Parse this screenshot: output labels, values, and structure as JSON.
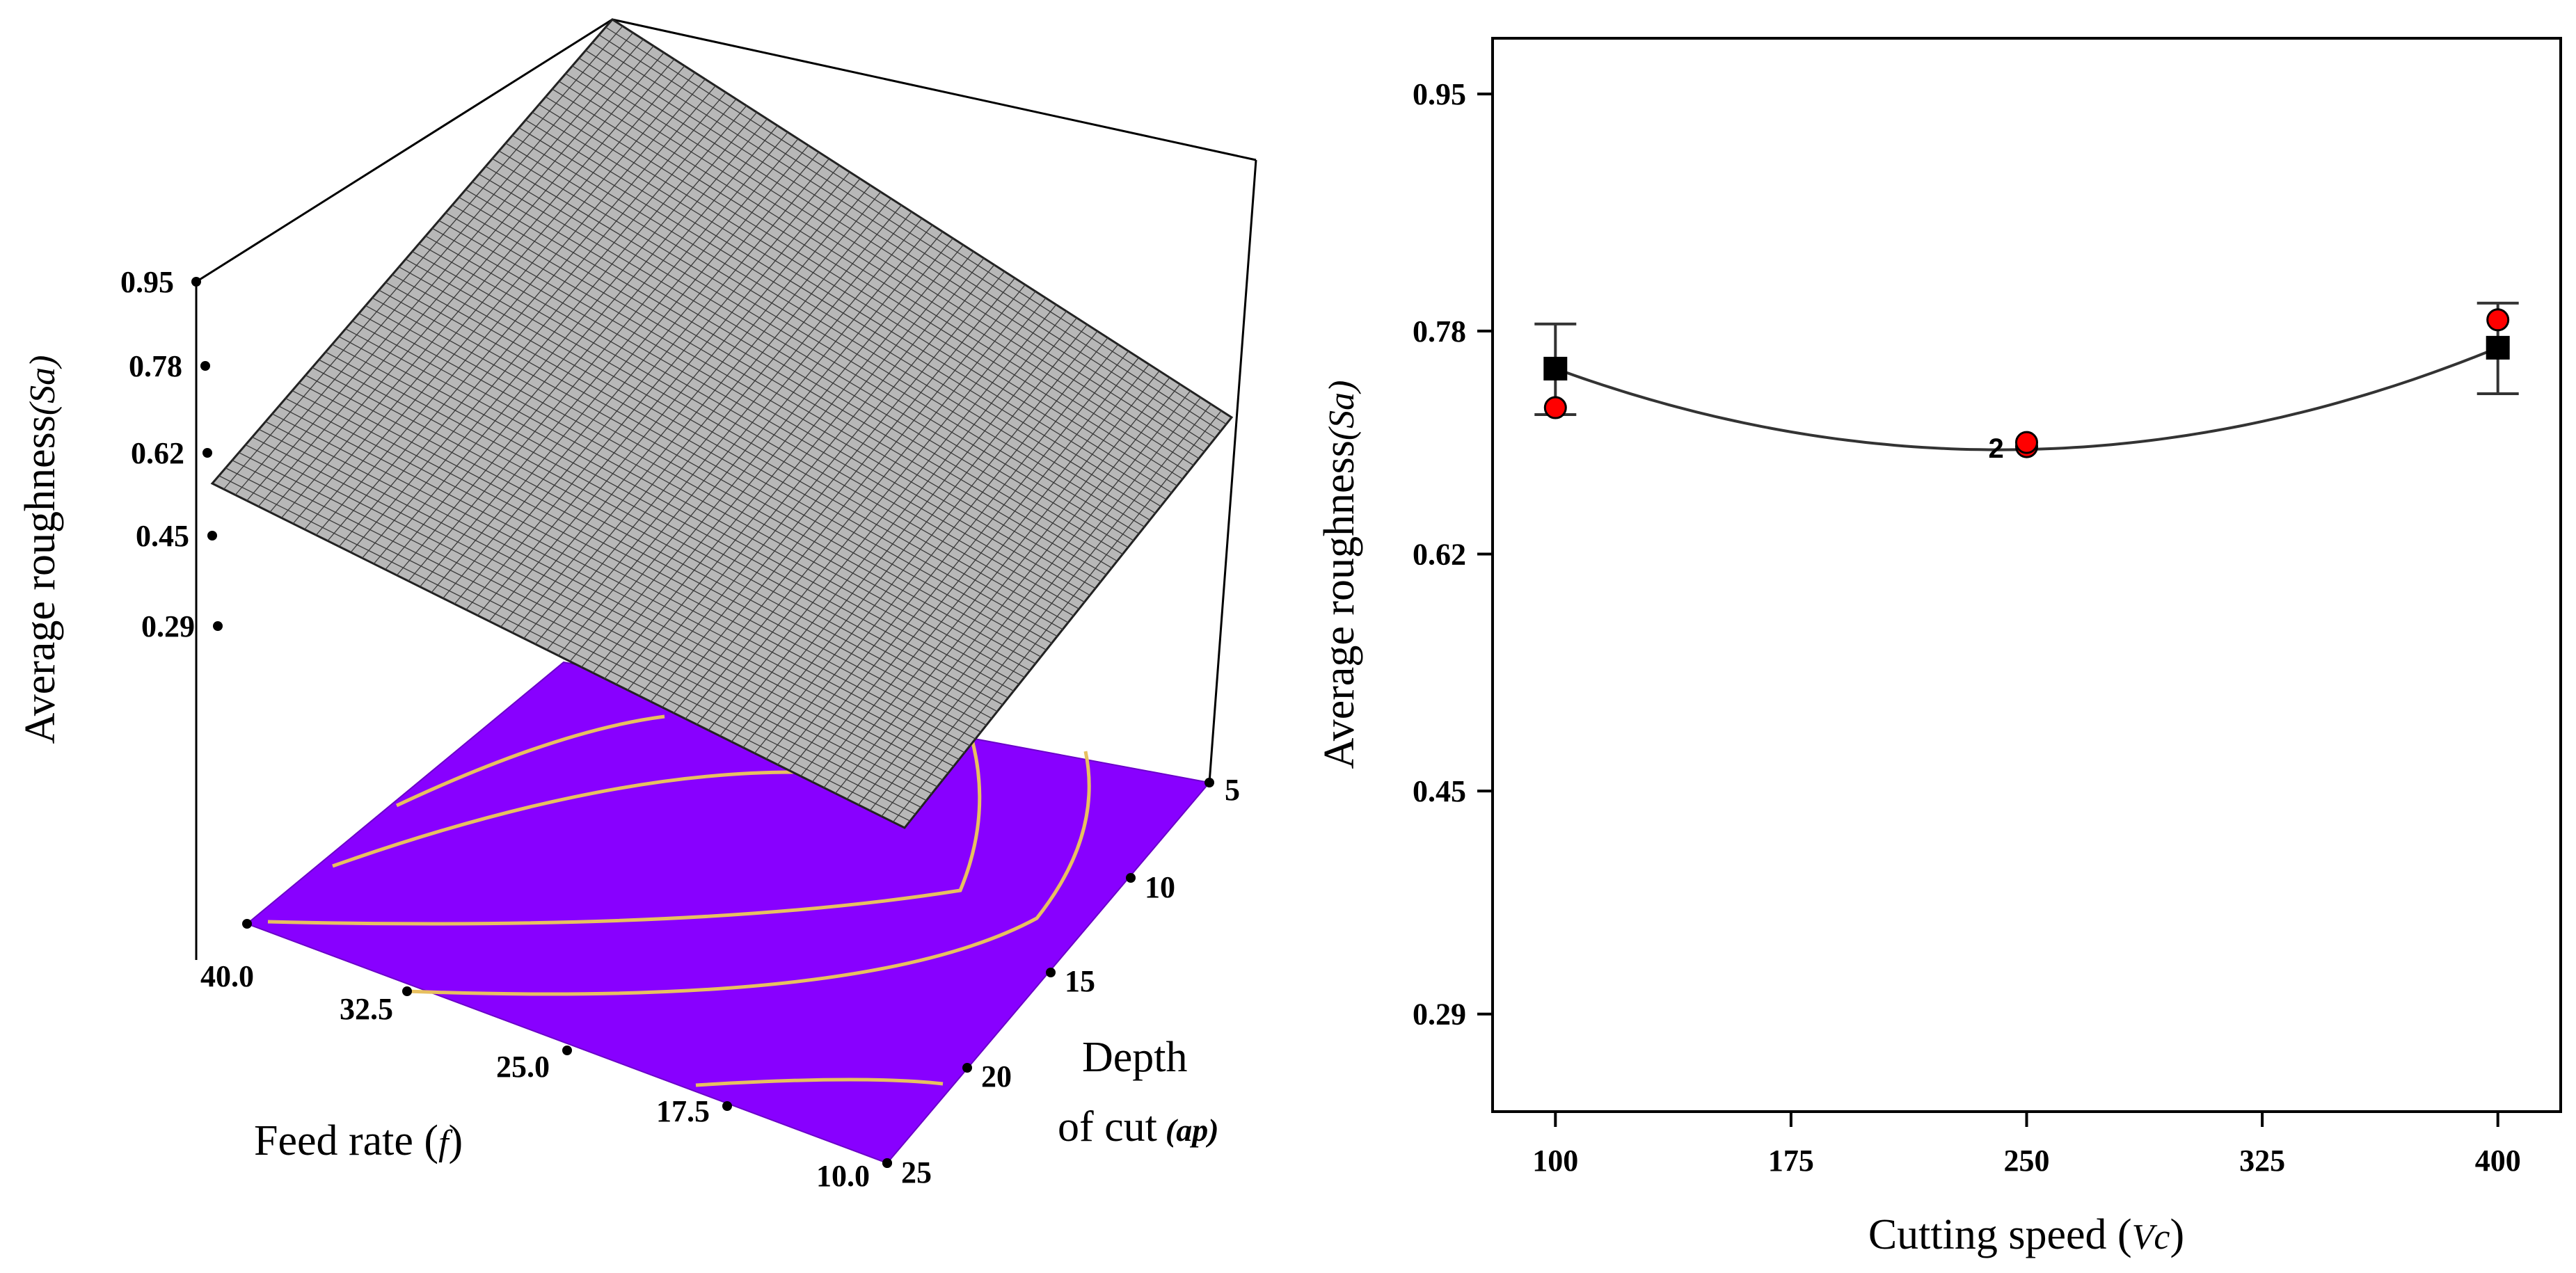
{
  "chart_data": [
    {
      "type": "surface3d",
      "title": "",
      "zlabel": "Average roughness",
      "zlabel_symbol": "(Sa)",
      "xlabel": "Feed rate (",
      "xlabel_symbol": "f",
      "xlabel_close": ")",
      "ylabel_line1": "Depth",
      "ylabel_line2": "of cut",
      "ylabel_symbol": "(ap)",
      "z_ticks": [
        "0.95",
        "0.78",
        "0.62",
        "0.45",
        "0.29"
      ],
      "feed_ticks": [
        "40.0",
        "32.5",
        "25.0",
        "17.5",
        "10.0"
      ],
      "depth_ticks": [
        "5",
        "10",
        "15",
        "20",
        "25"
      ],
      "surface_color": "#b8b8b8",
      "grid_line_color": "#3a3a3a",
      "floor_color": "#8800ff",
      "contour_color": "#e8c060"
    },
    {
      "type": "scatter",
      "title": "",
      "ylabel": "Average roughness",
      "ylabel_symbol": "(Sa)",
      "xlabel": "Cutting speed (",
      "xlabel_symbol": "Vc",
      "xlabel_close": ")",
      "xlim": [
        80,
        420
      ],
      "ylim": [
        0.22,
        0.99
      ],
      "x_ticks": [
        100,
        175,
        250,
        325,
        400
      ],
      "y_ticks": [
        0.29,
        0.45,
        0.62,
        0.78,
        0.95
      ],
      "y_tick_labels": [
        "0.29",
        "0.45",
        "0.62",
        "0.78",
        "0.95"
      ],
      "predicted": [
        {
          "x": 100,
          "y": 0.753,
          "low": 0.72,
          "high": 0.785
        },
        {
          "x": 250,
          "y": 0.695,
          "low": 0.695,
          "high": 0.695
        },
        {
          "x": 400,
          "y": 0.768,
          "low": 0.735,
          "high": 0.8
        }
      ],
      "observed": [
        {
          "x": 100,
          "y": 0.725
        },
        {
          "x": 250,
          "y": 0.697
        },
        {
          "x": 250,
          "y": 0.7
        },
        {
          "x": 400,
          "y": 0.788
        }
      ],
      "fit_curve": [
        [
          100,
          0.753
        ],
        [
          250,
          0.695
        ],
        [
          400,
          0.768
        ]
      ],
      "annotation": {
        "x": 250,
        "y": 0.697,
        "text": "2"
      },
      "marker_predicted_color": "#000000",
      "marker_observed_color": "#ff0000"
    }
  ]
}
